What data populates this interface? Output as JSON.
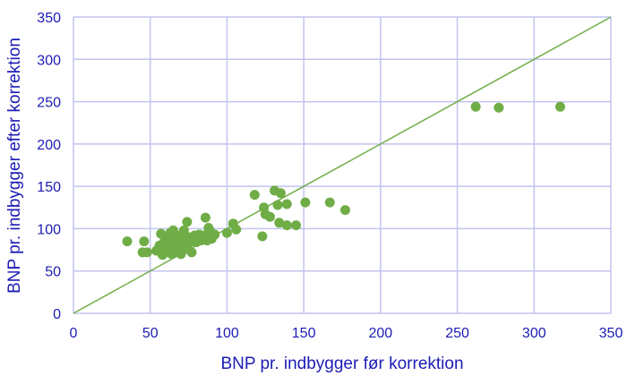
{
  "chart_data": {
    "type": "scatter",
    "title": "",
    "xlabel": "BNP pr. indbygger før korrektion",
    "ylabel": "BNP pr. indbygger efter korrektion",
    "xlim": [
      0,
      350
    ],
    "ylim": [
      0,
      350
    ],
    "x_ticks": [
      "0",
      "50",
      "100",
      "150",
      "200",
      "250",
      "300",
      "350"
    ],
    "y_ticks": [
      "0",
      "50",
      "100",
      "150",
      "200",
      "250",
      "300",
      "350"
    ],
    "grid": true,
    "legend": "none",
    "reference_line": {
      "from": [
        0,
        0
      ],
      "to": [
        350,
        350
      ],
      "color": "#70ad47"
    },
    "marker_color": "#70ad47",
    "axis_text_color": "#1c1cb4",
    "grid_color": "#c3c3f0",
    "points": [
      {
        "x": 35,
        "y": 85
      },
      {
        "x": 46,
        "y": 85
      },
      {
        "x": 45,
        "y": 72
      },
      {
        "x": 48,
        "y": 72
      },
      {
        "x": 54,
        "y": 74
      },
      {
        "x": 56,
        "y": 80
      },
      {
        "x": 57,
        "y": 94
      },
      {
        "x": 58,
        "y": 69
      },
      {
        "x": 59,
        "y": 84
      },
      {
        "x": 60,
        "y": 76
      },
      {
        "x": 61,
        "y": 90
      },
      {
        "x": 62,
        "y": 72
      },
      {
        "x": 62,
        "y": 79
      },
      {
        "x": 63,
        "y": 95
      },
      {
        "x": 64,
        "y": 84
      },
      {
        "x": 64,
        "y": 70
      },
      {
        "x": 65,
        "y": 98
      },
      {
        "x": 66,
        "y": 80
      },
      {
        "x": 66,
        "y": 76
      },
      {
        "x": 67,
        "y": 88
      },
      {
        "x": 68,
        "y": 73
      },
      {
        "x": 68,
        "y": 83
      },
      {
        "x": 69,
        "y": 92
      },
      {
        "x": 70,
        "y": 70
      },
      {
        "x": 70,
        "y": 78
      },
      {
        "x": 71,
        "y": 86
      },
      {
        "x": 72,
        "y": 98
      },
      {
        "x": 73,
        "y": 82
      },
      {
        "x": 74,
        "y": 108
      },
      {
        "x": 74,
        "y": 76
      },
      {
        "x": 75,
        "y": 90
      },
      {
        "x": 76,
        "y": 84
      },
      {
        "x": 77,
        "y": 72
      },
      {
        "x": 78,
        "y": 87
      },
      {
        "x": 79,
        "y": 92
      },
      {
        "x": 80,
        "y": 84
      },
      {
        "x": 81,
        "y": 89
      },
      {
        "x": 82,
        "y": 93
      },
      {
        "x": 83,
        "y": 86
      },
      {
        "x": 84,
        "y": 90
      },
      {
        "x": 85,
        "y": 92
      },
      {
        "x": 86,
        "y": 113
      },
      {
        "x": 87,
        "y": 86
      },
      {
        "x": 88,
        "y": 101
      },
      {
        "x": 89,
        "y": 97
      },
      {
        "x": 90,
        "y": 88
      },
      {
        "x": 92,
        "y": 93
      },
      {
        "x": 100,
        "y": 95
      },
      {
        "x": 104,
        "y": 106
      },
      {
        "x": 106,
        "y": 99
      },
      {
        "x": 118,
        "y": 140
      },
      {
        "x": 123,
        "y": 91
      },
      {
        "x": 124,
        "y": 125
      },
      {
        "x": 125,
        "y": 117
      },
      {
        "x": 128,
        "y": 114
      },
      {
        "x": 131,
        "y": 145
      },
      {
        "x": 133,
        "y": 128
      },
      {
        "x": 134,
        "y": 107
      },
      {
        "x": 135,
        "y": 142
      },
      {
        "x": 139,
        "y": 129
      },
      {
        "x": 139,
        "y": 104
      },
      {
        "x": 145,
        "y": 104
      },
      {
        "x": 151,
        "y": 131
      },
      {
        "x": 167,
        "y": 131
      },
      {
        "x": 177,
        "y": 122
      },
      {
        "x": 262,
        "y": 244
      },
      {
        "x": 277,
        "y": 243
      },
      {
        "x": 317,
        "y": 244
      }
    ]
  }
}
